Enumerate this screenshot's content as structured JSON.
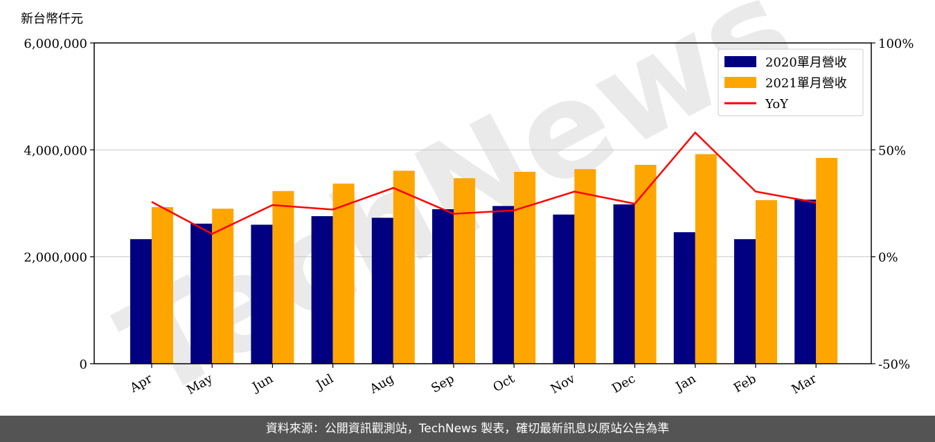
{
  "chart_data": {
    "type": "bar",
    "ylabel": "新台幣仟元",
    "categories": [
      "Apr",
      "May",
      "Jun",
      "Jul",
      "Aug",
      "Sep",
      "Oct",
      "Nov",
      "Dec",
      "Jan",
      "Feb",
      "Mar"
    ],
    "series": [
      {
        "name": "2020單月營收",
        "color": "#000080",
        "values": [
          2330000,
          2620000,
          2600000,
          2760000,
          2730000,
          2890000,
          2950000,
          2790000,
          2980000,
          2460000,
          2330000,
          3070000
        ]
      },
      {
        "name": "2021單月營收",
        "color": "#FFA500",
        "values": [
          2930000,
          2900000,
          3230000,
          3370000,
          3610000,
          3470000,
          3590000,
          3640000,
          3720000,
          3920000,
          3060000,
          3850000
        ]
      }
    ],
    "line_series": {
      "name": "YoY",
      "color": "#FF0000",
      "axis": "right",
      "values": [
        25.7,
        10.7,
        24.2,
        22.1,
        32.2,
        20.1,
        21.7,
        30.5,
        24.8,
        58.1,
        30.5,
        25.4
      ]
    },
    "ylim": [
      0,
      6000000
    ],
    "y_ticks": [
      "0",
      "2,000,000",
      "4,000,000",
      "6,000,000"
    ],
    "y_tick_values": [
      0,
      2000000,
      4000000,
      6000000
    ],
    "y2lim": [
      -50,
      100
    ],
    "y2_ticks": [
      "-50%",
      "0%",
      "50%",
      "100%"
    ],
    "y2_tick_values": [
      -50,
      0,
      50,
      100
    ],
    "grid": "horizontal",
    "legend_position": "top-right",
    "watermark": "TechNews"
  },
  "footer": {
    "source_text": "資料來源：公開資訊觀測站，TechNews 製表，確切最新訊息以原站公告為準"
  }
}
